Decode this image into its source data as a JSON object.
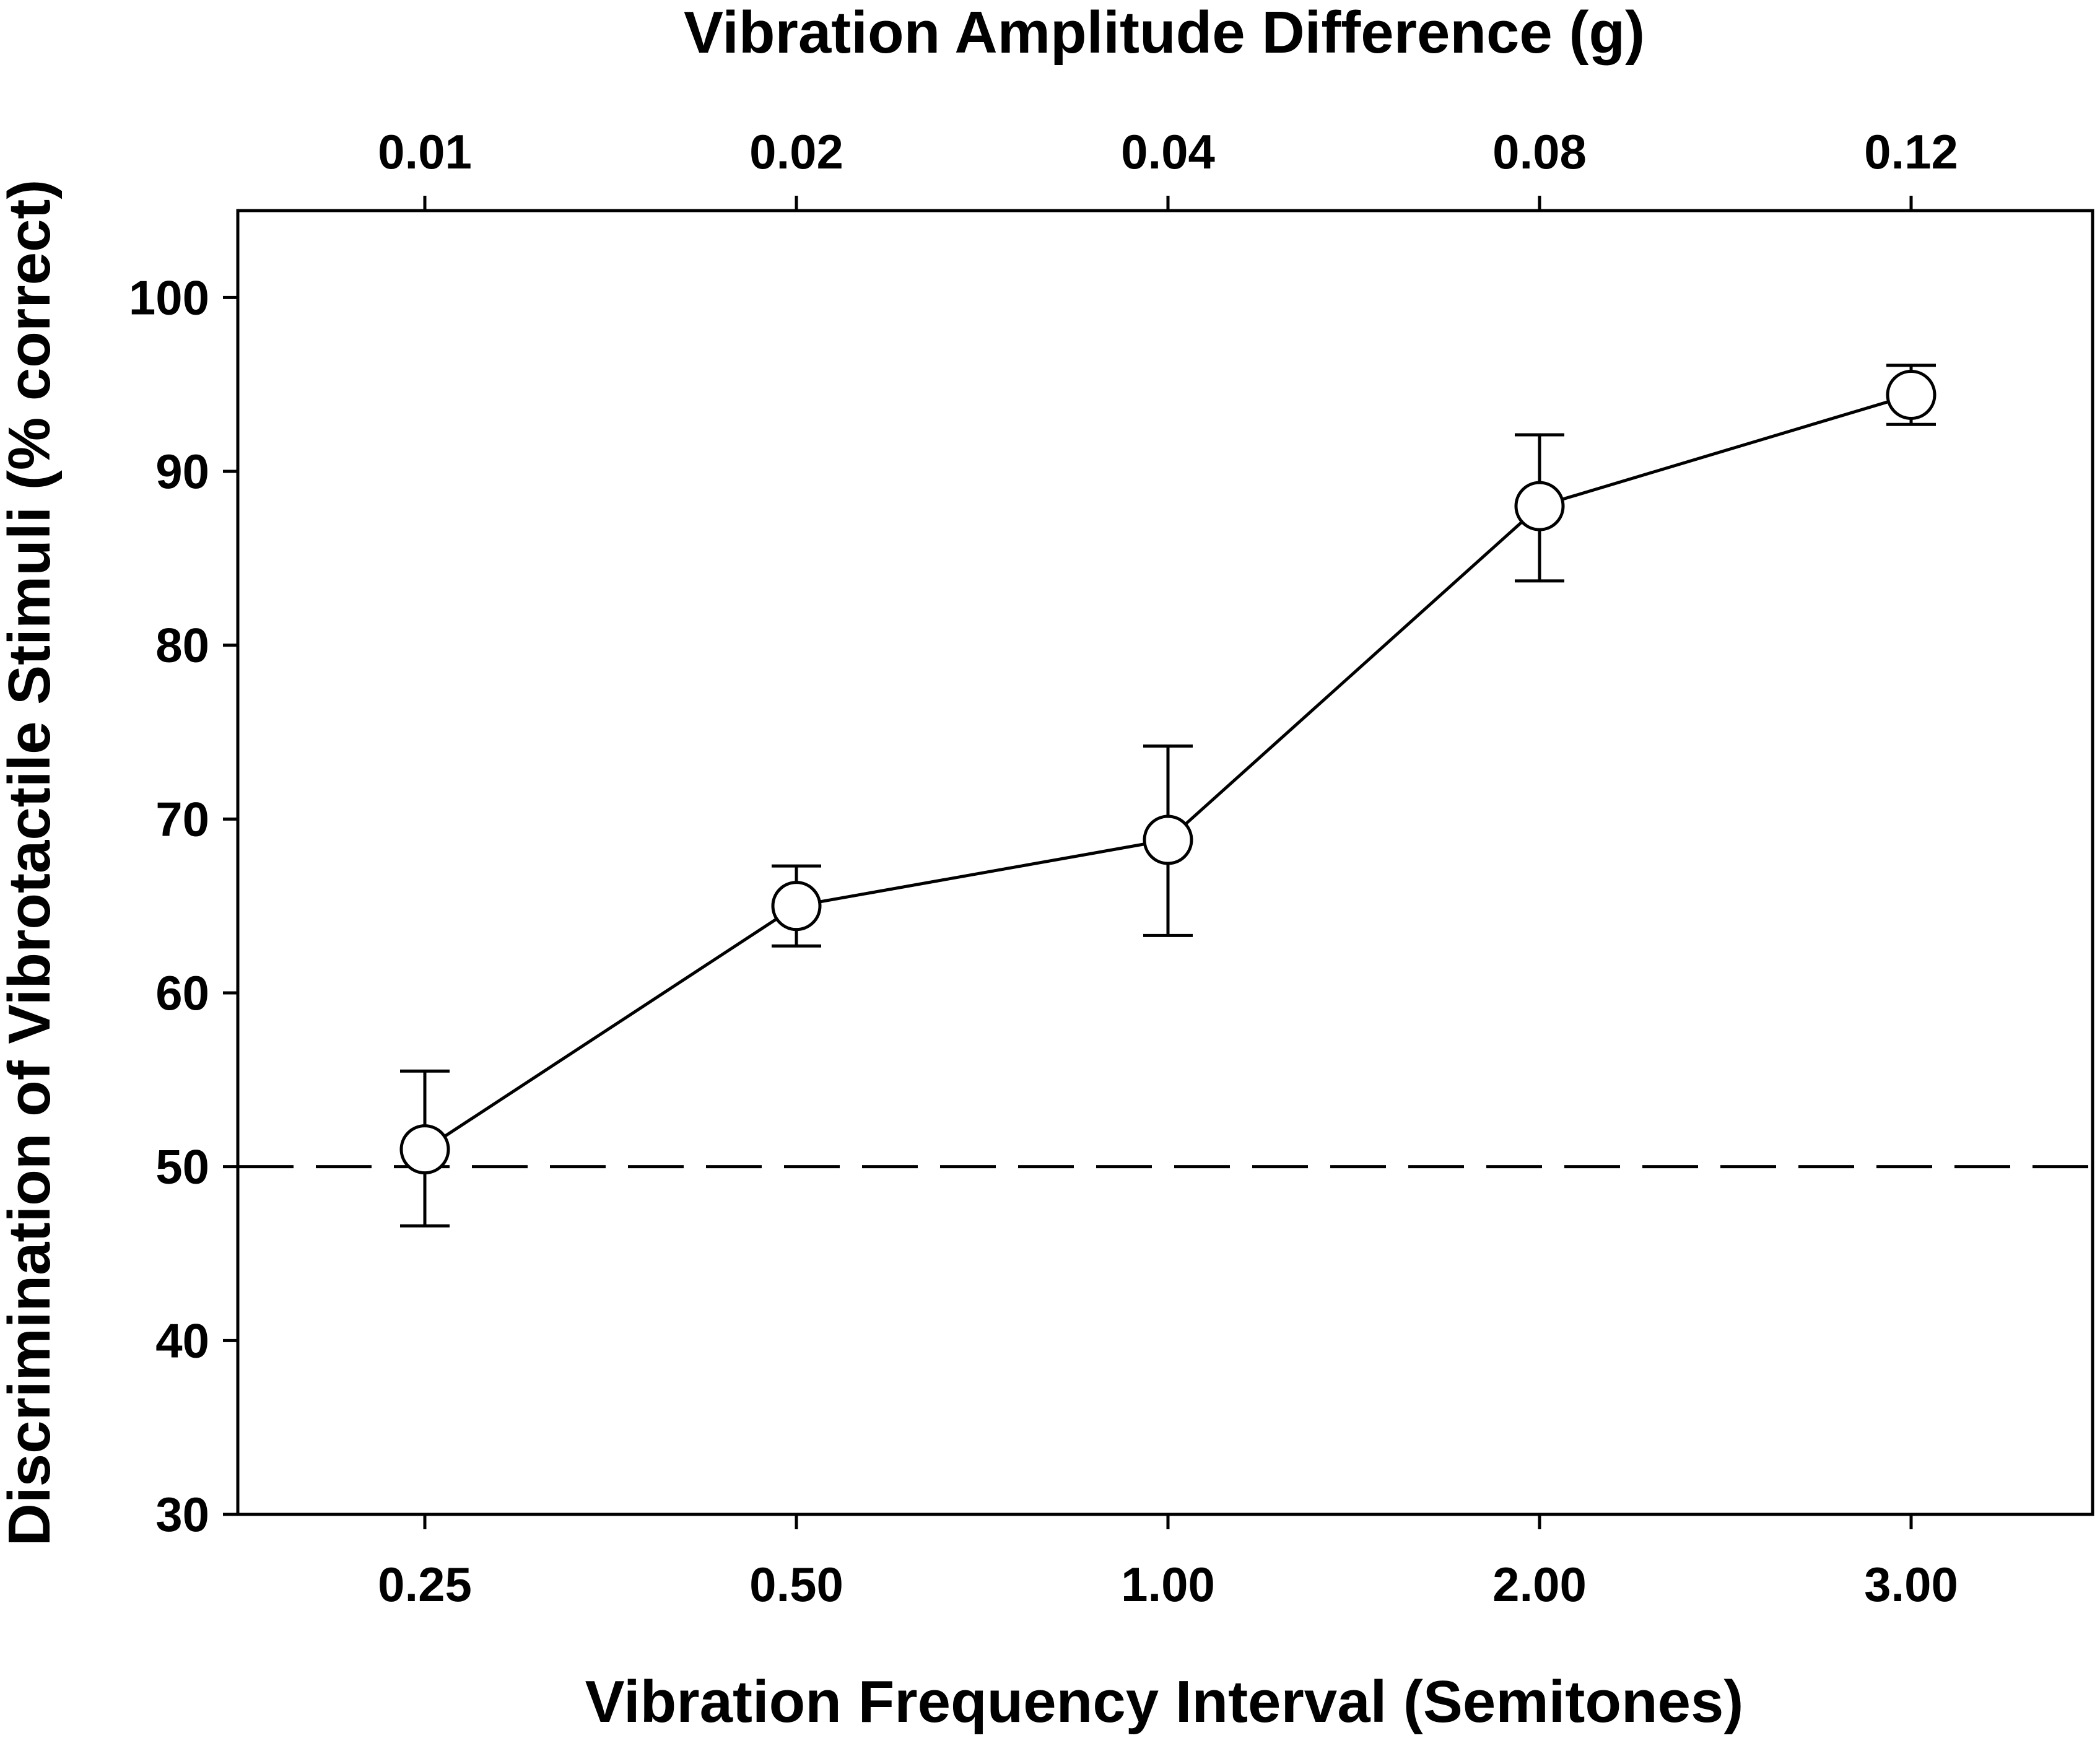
{
  "chart_data": {
    "type": "line",
    "title": "",
    "xlabel": "Vibration Frequency Interval (Semitones)",
    "x2label": "Vibration Amplitude Difference (g)",
    "ylabel": "Discrimination of Vibrotactile Stimuli (% correct)",
    "categories": [
      "0.25",
      "0.50",
      "1.00",
      "2.00",
      "3.00"
    ],
    "top_categories": [
      "0.01",
      "0.02",
      "0.04",
      "0.08",
      "0.12"
    ],
    "series": [
      {
        "name": "Discrimination",
        "values": [
          51,
          65,
          68.8,
          88,
          94.4
        ],
        "error_upper": [
          55.5,
          67.3,
          74.2,
          92.1,
          96.1
        ],
        "error_lower": [
          46.6,
          62.7,
          63.3,
          83.7,
          92.7
        ],
        "marker": "open-circle"
      }
    ],
    "ylim": [
      30,
      105
    ],
    "yticks": [
      30,
      40,
      50,
      60,
      70,
      80,
      90,
      100
    ],
    "reference_line": {
      "value": 50,
      "style": "dashed"
    },
    "grid": false,
    "legend": "none"
  },
  "colors": {
    "line": "#000000",
    "marker_fill": "#ffffff",
    "background": "#ffffff"
  }
}
